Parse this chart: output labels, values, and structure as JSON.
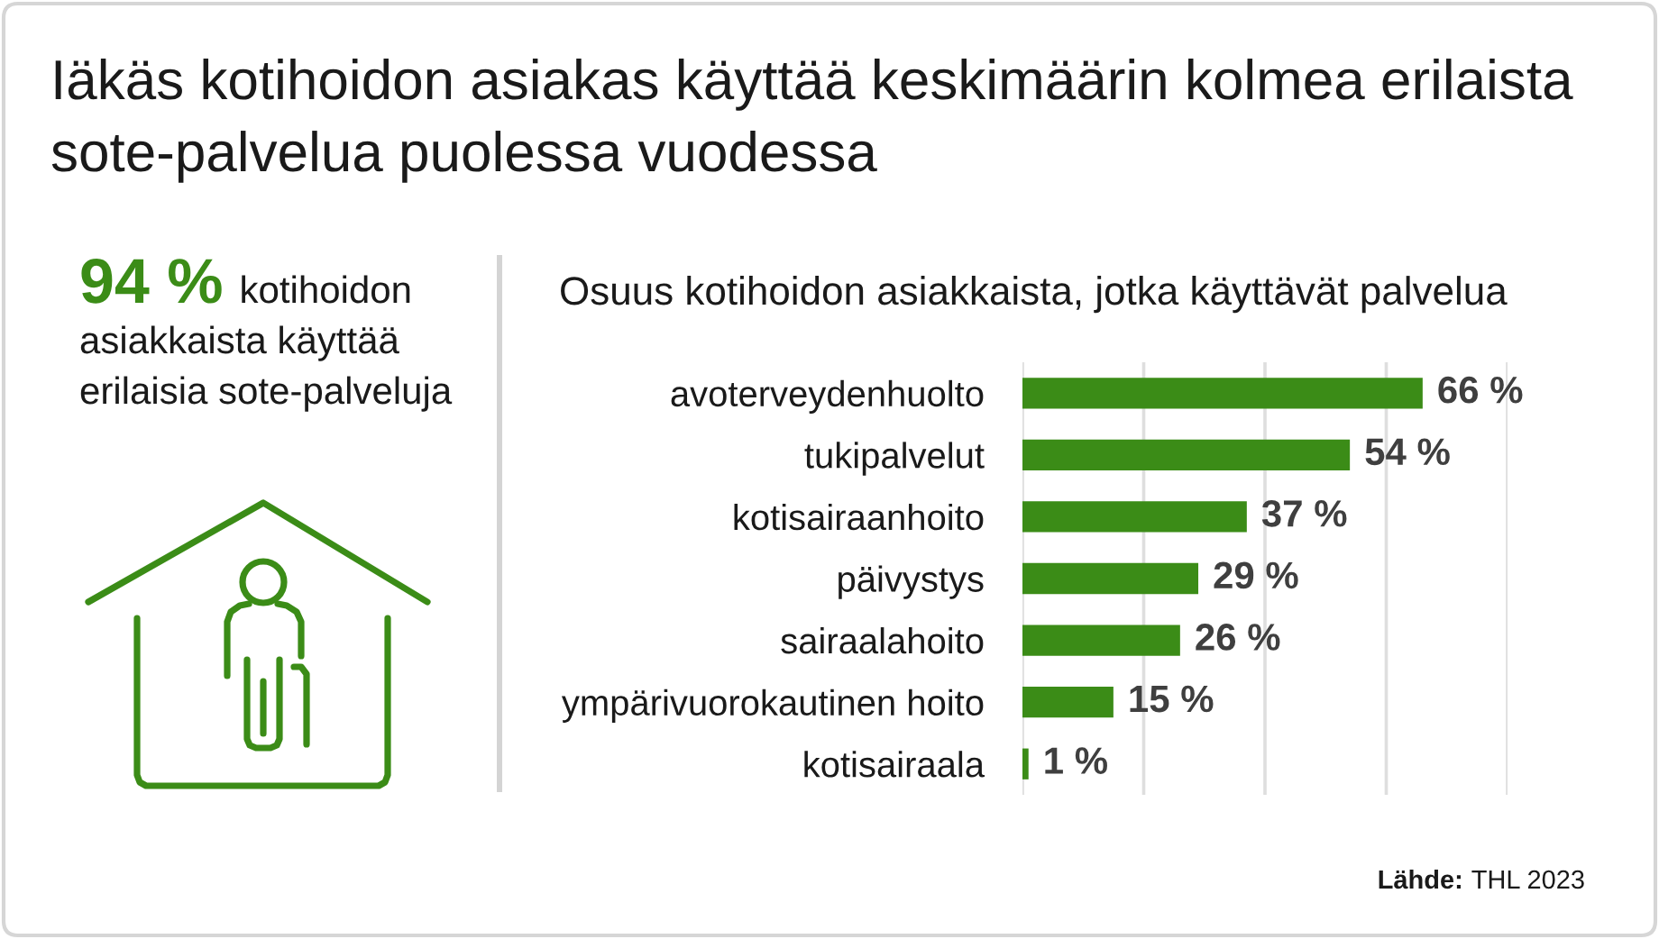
{
  "chart_data": {
    "type": "bar",
    "orientation": "horizontal",
    "title": "Iäkäs kotihoidon asiakas käyttää keskimäärin kolmea erilaista sote-palvelua puolessa vuodessa",
    "subtitle": "Osuus kotihoidon asiakkaista, jotka käyttävät palvelua",
    "categories": [
      "avoterveydenhuolto",
      "tukipalvelut",
      "kotisairaanhoito",
      "päivystys",
      "sairaalahoito",
      "ympärivuorokautinen hoito",
      "kotisairaala"
    ],
    "values": [
      66,
      54,
      37,
      29,
      26,
      15,
      1
    ],
    "color": "#3b8c17",
    "value_labels": [
      "66 %",
      "54 %",
      "37 %",
      "29 %",
      "26 %",
      "15 %",
      "1 %"
    ],
    "xlim": [
      0,
      80
    ],
    "xticks": [
      {
        "value": 0,
        "label": null
      },
      {
        "value": 20,
        "label": null
      },
      {
        "value": 40,
        "label": null
      },
      {
        "value": 60,
        "label": null
      },
      {
        "value": 80,
        "label": null
      }
    ],
    "grid": "x",
    "tick_labels": "y",
    "annotations": [
      "94 %",
      "kotihoidon asiakkaista käyttää erilaisia sote-palveluja",
      "Lähde:",
      "THL 2023"
    ]
  }
}
